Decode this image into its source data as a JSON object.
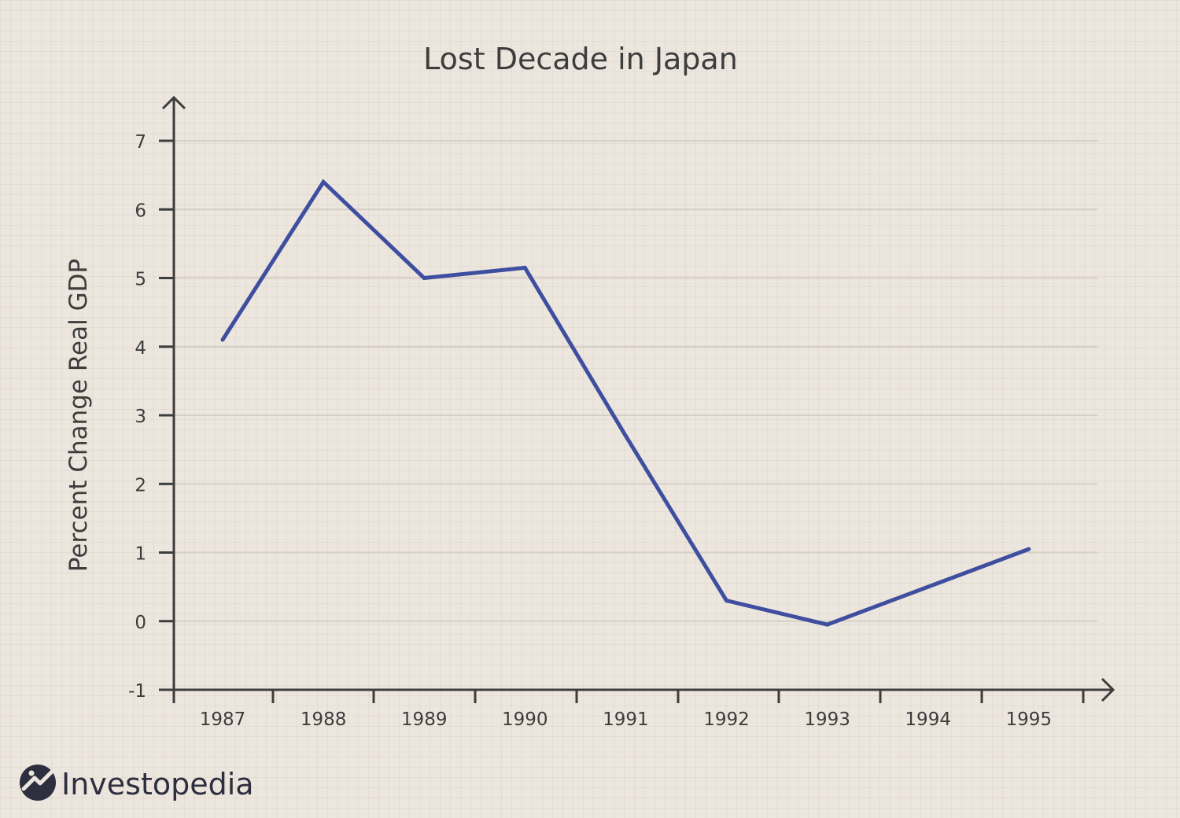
{
  "chart_data": {
    "type": "line",
    "title": "Lost Decade in Japan",
    "xlabel": "",
    "ylabel": "Percent Change Real GDP",
    "x": [
      "1987",
      "1988",
      "1989",
      "1990",
      "1991",
      "1992",
      "1993",
      "1994",
      "1995"
    ],
    "series": [
      {
        "values": [
          4.1,
          6.4,
          5.0,
          5.15,
          2.7,
          0.3,
          -0.05,
          0.5,
          1.05
        ],
        "color": "#3f4fa0"
      }
    ],
    "yticks": [
      "-1",
      "0",
      "1",
      "2",
      "3",
      "4",
      "5",
      "6",
      "7"
    ],
    "ylim": [
      -1,
      7
    ],
    "grid": true,
    "legend": "none"
  },
  "brand": {
    "name": "Investopedia",
    "icon": "investopedia-logo-icon",
    "color": "#2d2f3e"
  }
}
